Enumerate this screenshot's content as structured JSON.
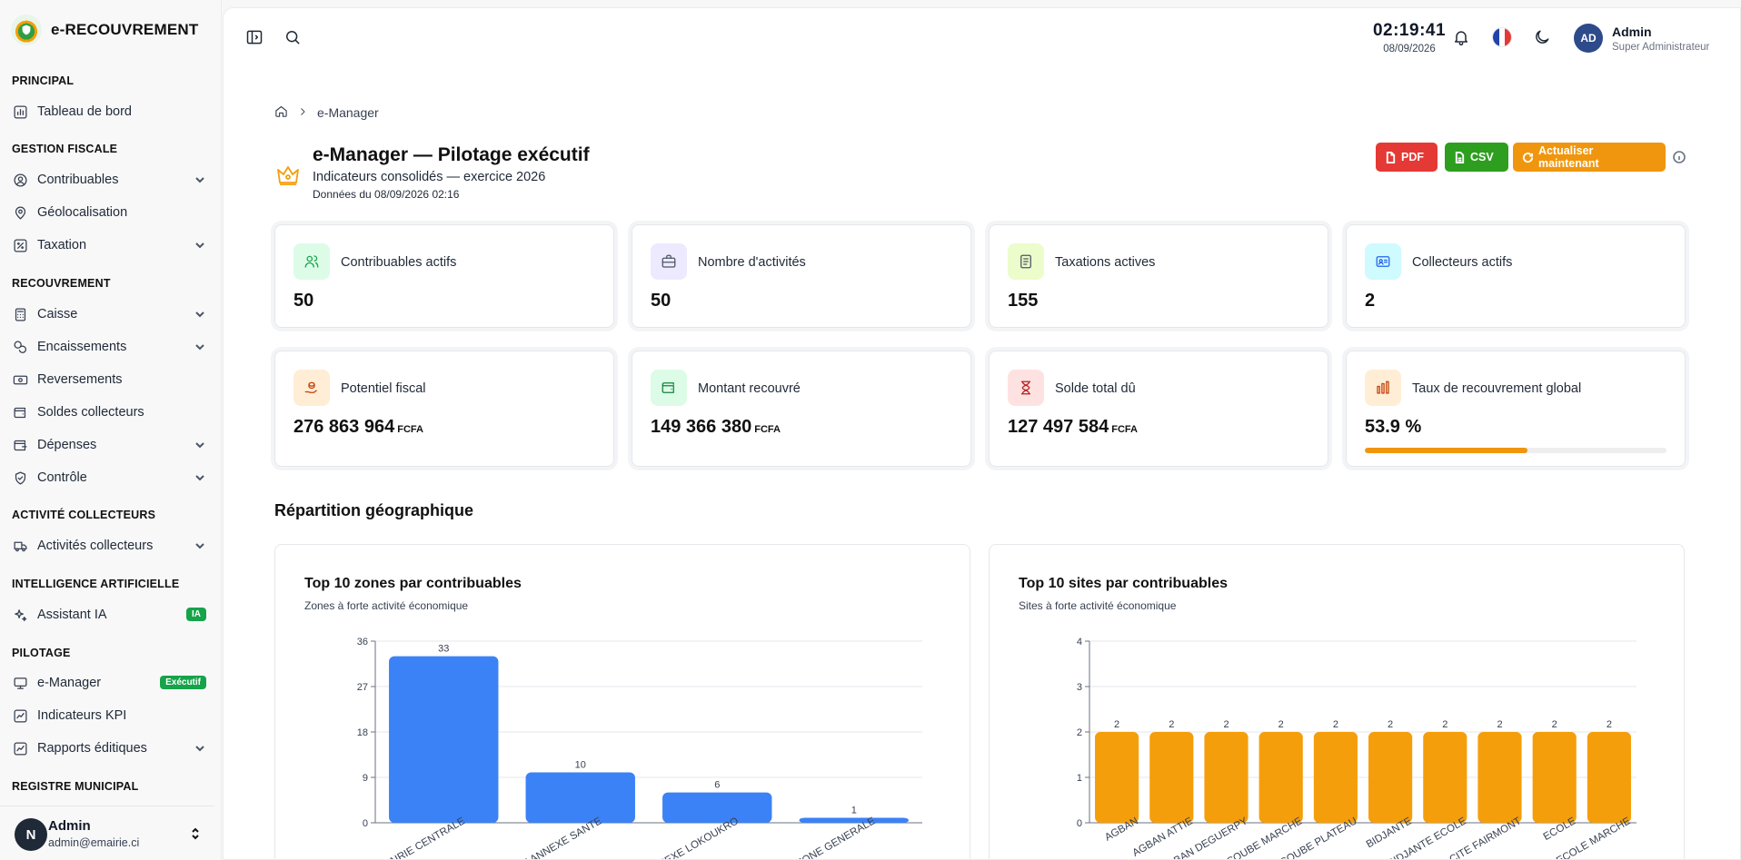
{
  "app": {
    "title": "e-RECOUVREMENT"
  },
  "sidebar": {
    "sections": [
      {
        "label": "PRINCIPAL"
      },
      {
        "label": "GESTION FISCALE"
      },
      {
        "label": "RECOUVREMENT"
      },
      {
        "label": "ACTIVITÉ COLLECTEURS"
      },
      {
        "label": "INTELLIGENCE ARTIFICIELLE"
      },
      {
        "label": "PILOTAGE"
      },
      {
        "label": "REGISTRE MUNICIPAL"
      }
    ],
    "items": [
      {
        "label": "Tableau de bord",
        "icon": "chart-icon"
      },
      {
        "label": "Contribuables",
        "icon": "user-circle-icon"
      },
      {
        "label": "Géolocalisation",
        "icon": "map-pin-icon"
      },
      {
        "label": "Taxation",
        "icon": "percent-icon"
      },
      {
        "label": "Caisse",
        "icon": "calculator-icon"
      },
      {
        "label": "Encaissements",
        "icon": "coins-icon"
      },
      {
        "label": "Reversements",
        "icon": "banknote-icon"
      },
      {
        "label": "Soldes collecteurs",
        "icon": "wallet-icon"
      },
      {
        "label": "Dépenses",
        "icon": "wallet-out-icon"
      },
      {
        "label": "Contrôle",
        "icon": "shield-check-icon"
      },
      {
        "label": "Activités collecteurs",
        "icon": "truck-icon"
      },
      {
        "label": "Assistant IA",
        "icon": "sparkles-icon",
        "badge": "IA"
      },
      {
        "label": "e-Manager",
        "icon": "monitor-icon",
        "badge": "Exécutif"
      },
      {
        "label": "Indicateurs KPI",
        "icon": "trend-icon"
      },
      {
        "label": "Rapports éditiques",
        "icon": "trend-icon"
      }
    ],
    "user": {
      "initial": "N",
      "name": "Admin",
      "email": "admin@emairie.ci"
    }
  },
  "topbar": {
    "time": "02:19:41",
    "date": "08/09/2026",
    "user": {
      "initials": "AD",
      "name": "Admin",
      "role": "Super Administrateur"
    }
  },
  "breadcrumb": {
    "current": "e-Manager"
  },
  "page": {
    "title": "e-Manager — Pilotage exécutif",
    "subtitle": "Indicateurs consolidés — exercice 2026",
    "data_date": "Données du 08/09/2026 02:16",
    "buttons": {
      "pdf": "PDF",
      "csv": "CSV",
      "refresh": "Actualiser maintenant"
    }
  },
  "kpis": [
    {
      "label": "Contribuables actifs",
      "value": "50",
      "unit": "",
      "icon": "users-icon",
      "bg": "#dcfce7",
      "color": "#16a34a"
    },
    {
      "label": "Nombre d'activités",
      "value": "50",
      "unit": "",
      "icon": "briefcase-icon",
      "bg": "#ede9fe",
      "color": "#4b5563"
    },
    {
      "label": "Taxations actives",
      "value": "155",
      "unit": "",
      "icon": "document-icon",
      "bg": "#ecfccb",
      "color": "#4b5563"
    },
    {
      "label": "Collecteurs actifs",
      "value": "2",
      "unit": "",
      "icon": "id-card-icon",
      "bg": "#cffafe",
      "color": "#2563eb"
    },
    {
      "label": "Potentiel fiscal",
      "value": "276 863 964",
      "unit": "FCFA",
      "icon": "hand-coins-icon",
      "bg": "#ffedd5",
      "color": "#c2410c"
    },
    {
      "label": "Montant recouvré",
      "value": "149 366 380",
      "unit": "FCFA",
      "icon": "wallet-icon",
      "bg": "#dcfce7",
      "color": "#15803d"
    },
    {
      "label": "Solde total dû",
      "value": "127 497 584",
      "unit": "FCFA",
      "icon": "hourglass-icon",
      "bg": "#fee2e2",
      "color": "#b91c1c"
    },
    {
      "label": "Taux de recouvrement global",
      "value": "53.9 %",
      "unit": "",
      "icon": "bar-chart-icon",
      "bg": "#ffedd5",
      "color": "#c2410c",
      "progress": 53.9
    }
  ],
  "section": {
    "title": "Répartition géographique"
  },
  "chart_data": [
    {
      "type": "bar",
      "title": "Top 10 zones par contribuables",
      "subtitle": "Zones à forte activité économique",
      "categories": [
        "MAIRIE CENTRALE",
        "MAIRIE ANNEXE SANTE",
        "MAIRIE ANNEXE LOKOUKRO",
        "ZONE GENERALE"
      ],
      "values": [
        33,
        10,
        6,
        1
      ],
      "ylim": [
        0,
        36
      ],
      "yticks": [
        0,
        9,
        18,
        27,
        36
      ],
      "color": "#3b82f6",
      "grid": true
    },
    {
      "type": "bar",
      "title": "Top 10 sites par contribuables",
      "subtitle": "Sites à forte activité économique",
      "categories": [
        "AGBAN",
        "AGBAN ATTIE",
        "AGBAN DEGUERPY",
        "ATTECOUBE MARCHE",
        "ATTECOUBE PLATEAU",
        "BIDJANTE",
        "BIDJANTE ECOLE",
        "CITE FAIRMONT",
        "ECOLE",
        "ECOLE MARCHE"
      ],
      "values": [
        2,
        2,
        2,
        2,
        2,
        2,
        2,
        2,
        2,
        2
      ],
      "ylim": [
        0,
        4
      ],
      "yticks": [
        0,
        1,
        2,
        3,
        4
      ],
      "color": "#f59e0b",
      "grid": true
    }
  ]
}
